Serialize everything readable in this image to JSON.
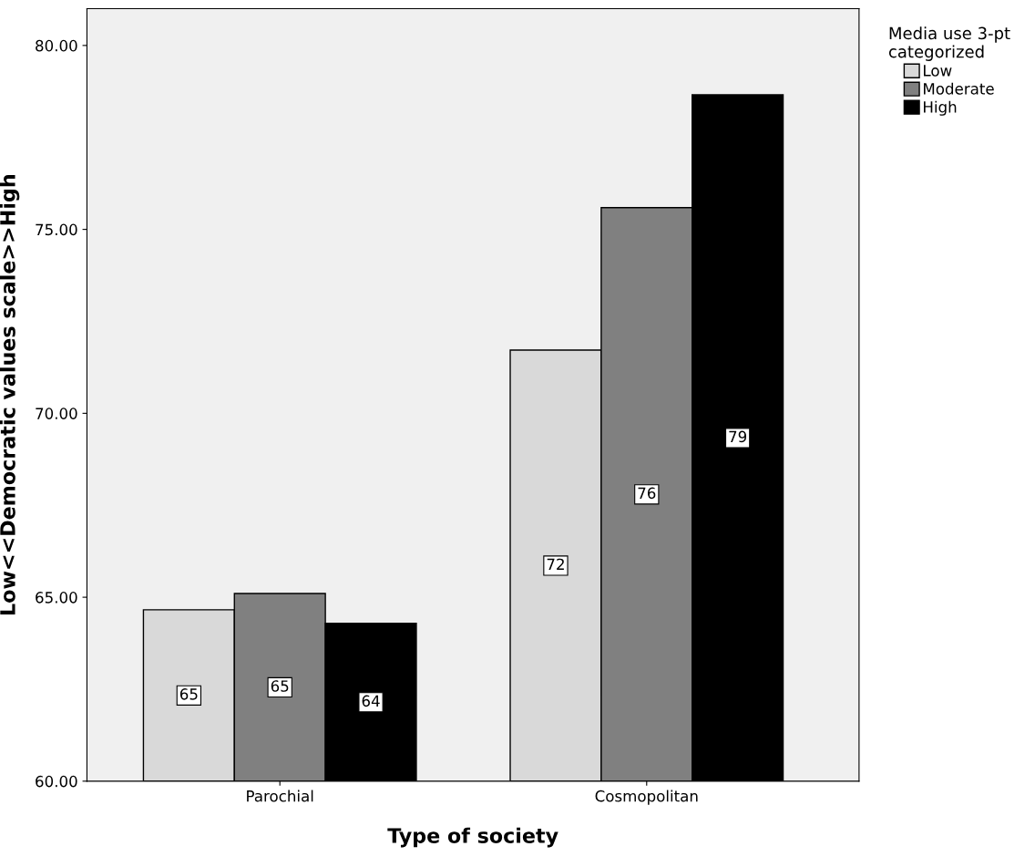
{
  "chart_data": {
    "type": "bar",
    "xlabel": "Type of society",
    "ylabel": "Low<<Democratic values scale>>High",
    "legend_title": "Media use 3-pt\ncategorized",
    "legend": "top right",
    "categories": [
      "Parochial",
      "Cosmopolitan"
    ],
    "series": [
      {
        "name": "Low",
        "color": "#d9d9d9",
        "values": [
          64.66,
          71.72
        ],
        "value_labels": [
          "65",
          "72"
        ]
      },
      {
        "name": "Moderate",
        "color": "#808080",
        "values": [
          65.1,
          75.59
        ],
        "value_labels": [
          "65",
          "76"
        ]
      },
      {
        "name": "High",
        "color": "#000000",
        "values": [
          64.29,
          78.66
        ],
        "value_labels": [
          "64",
          "79"
        ]
      }
    ],
    "ylim": [
      60,
      81
    ],
    "yticks": [
      {
        "value": 60,
        "label": "60.00"
      },
      {
        "value": 65,
        "label": "65.00"
      },
      {
        "value": 70,
        "label": "70.00"
      },
      {
        "value": 75,
        "label": "75.00"
      },
      {
        "value": 80,
        "label": "80.00"
      }
    ],
    "grid": false
  }
}
